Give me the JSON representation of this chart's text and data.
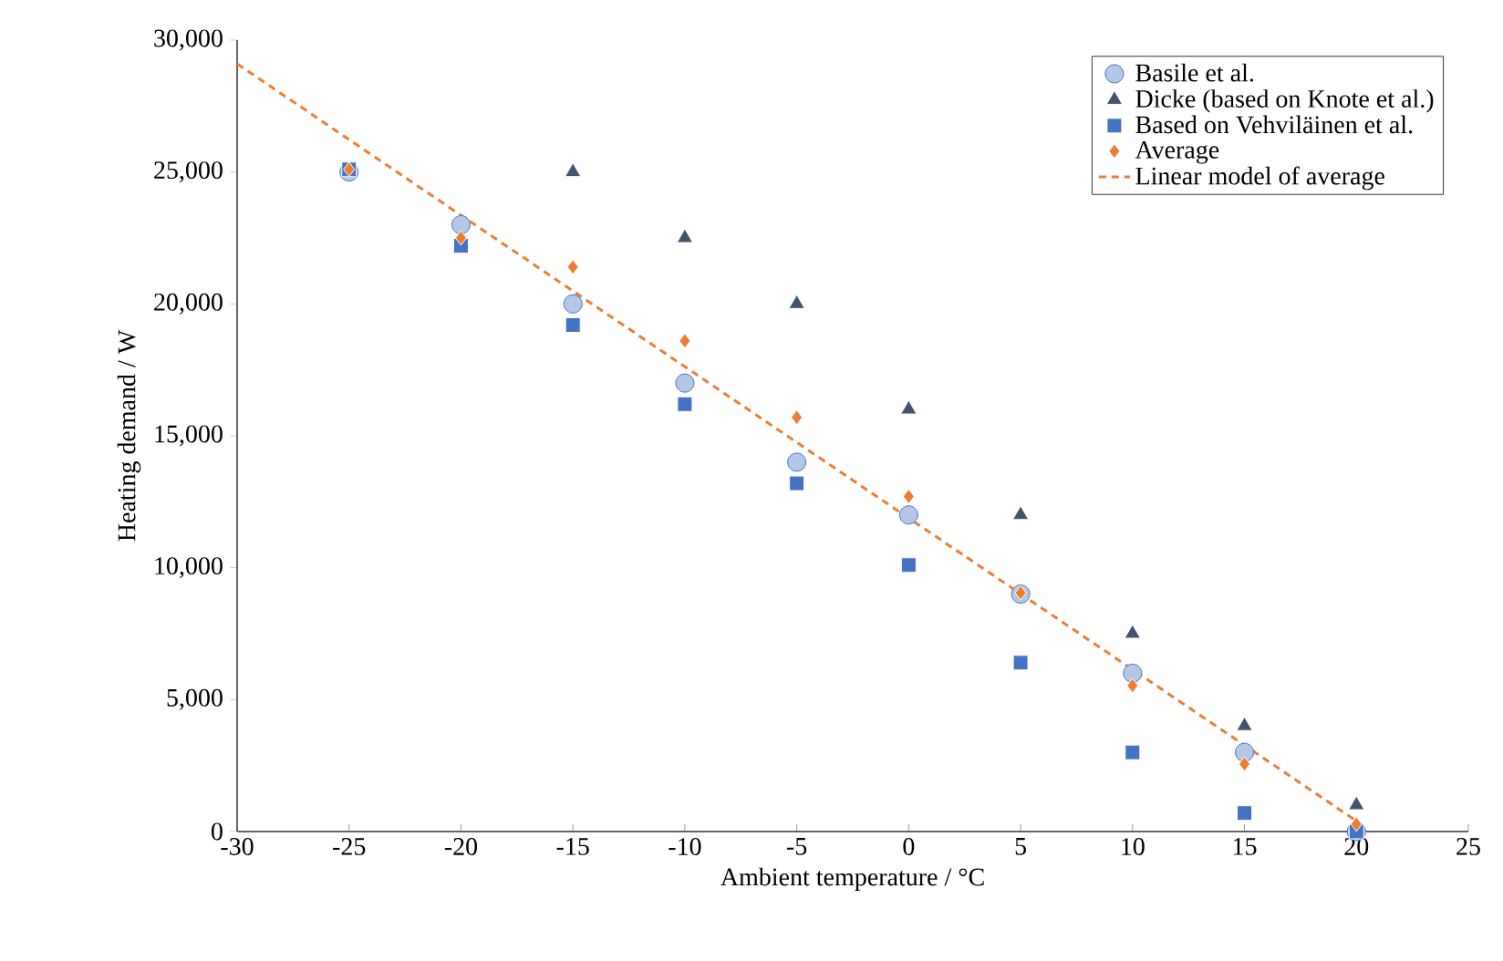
{
  "chart_data": {
    "type": "scatter",
    "xlabel": "Ambient temperature / °C",
    "ylabel": "Heating demand / W",
    "xlim": [
      -30,
      25
    ],
    "xticks": [
      -30,
      -25,
      -20,
      -15,
      -10,
      -5,
      0,
      5,
      10,
      15,
      20,
      25
    ],
    "ylim": [
      0,
      30000
    ],
    "yticks": [
      {
        "value": 0,
        "label": "0"
      },
      {
        "value": 5000,
        "label": "5,000"
      },
      {
        "value": 10000,
        "label": "10,000"
      },
      {
        "value": 15000,
        "label": "15,000"
      },
      {
        "value": 20000,
        "label": "20,000"
      },
      {
        "value": 25000,
        "label": "25,000"
      },
      {
        "value": 30000,
        "label": "30,000"
      }
    ],
    "legend": "top right",
    "grid": false,
    "series": [
      {
        "name": "Basile et al.",
        "color": "#b4c7e7",
        "marker": "circle",
        "x": [
          -25,
          -20,
          -15,
          -10,
          -5,
          0,
          5,
          10,
          15,
          20
        ],
        "values": [
          25000,
          23000,
          20000,
          17000,
          14000,
          12000,
          9000,
          6000,
          3000,
          0
        ]
      },
      {
        "name": "Dicke (based on Knote et al.)",
        "color": "#44546a",
        "marker": "triangle",
        "x": [
          -15,
          -10,
          -5,
          0,
          5,
          10,
          15,
          20
        ],
        "values": [
          25000,
          22500,
          20000,
          16000,
          12000,
          7500,
          4000,
          1000
        ]
      },
      {
        "name": "Based on Vehviläinen et al.",
        "color": "#4472c4",
        "marker": "square",
        "x": [
          -25,
          -20,
          -15,
          -10,
          -5,
          0,
          5,
          10,
          15,
          20
        ],
        "values": [
          25100,
          22200,
          19200,
          16200,
          13200,
          10100,
          6400,
          3000,
          700,
          0
        ]
      },
      {
        "name": "Average",
        "color": "#ed7d31",
        "marker": "diamond",
        "x": [
          -25,
          -20,
          -15,
          -10,
          -5,
          0,
          5,
          10,
          15,
          20
        ],
        "values": [
          25100,
          22500,
          21400,
          18600,
          15700,
          12700,
          9050,
          5530,
          2560,
          280
        ]
      },
      {
        "name": "Linear model of average",
        "type": "line",
        "line_style": "dashed",
        "marker": "none",
        "color": "#ed7d31",
        "x": [
          -30,
          20
        ],
        "values": [
          29100,
          400
        ]
      }
    ]
  }
}
